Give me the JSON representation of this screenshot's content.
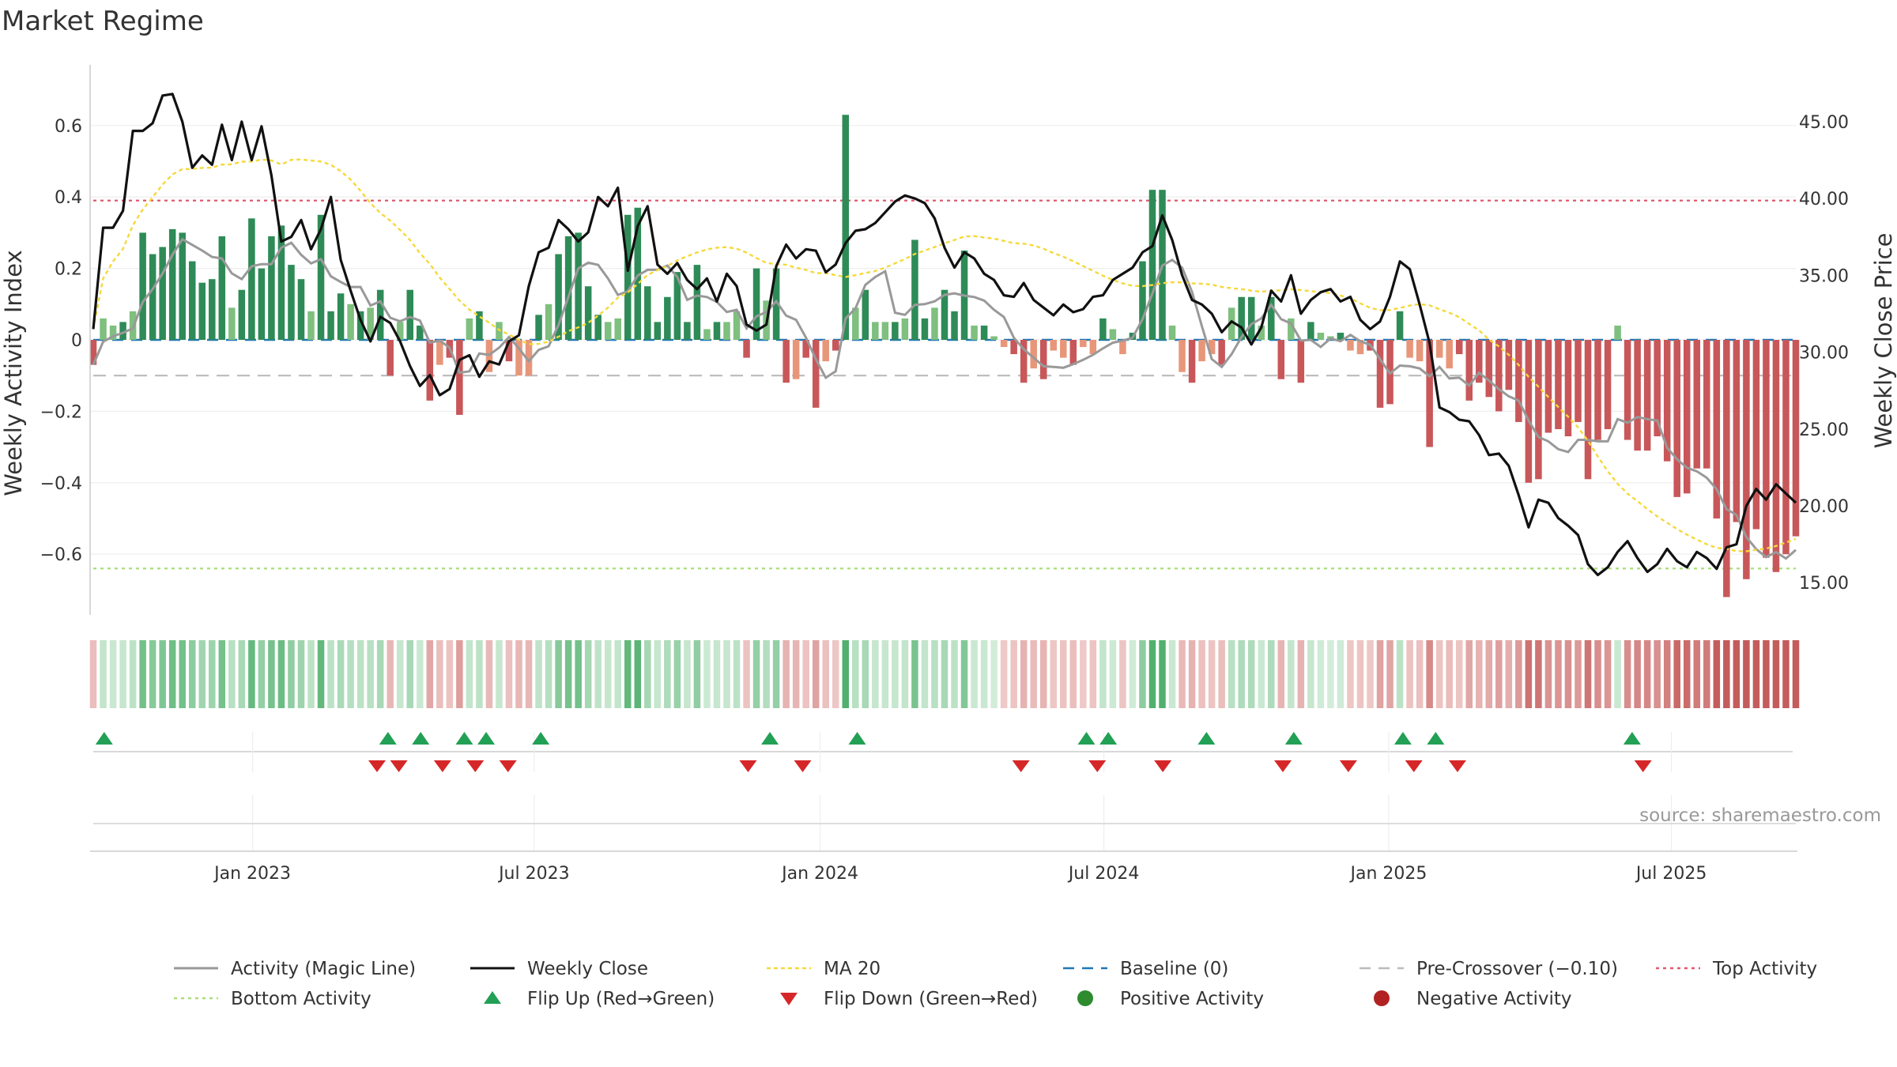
{
  "chart_data": {
    "type": "bar",
    "title": "Market Regime",
    "ylabel_left": "Weekly Activity Index",
    "ylabel_right": "Weekly Close Price",
    "ylim_left": [
      -0.77,
      0.77
    ],
    "ylim_right": [
      12.9,
      48.7
    ],
    "yticks_left": [
      {
        "value": 0.6,
        "label": "0.6"
      },
      {
        "value": 0.4,
        "label": "0.4"
      },
      {
        "value": 0.2,
        "label": "0.2"
      },
      {
        "value": 0.0,
        "label": "0"
      },
      {
        "value": -0.2,
        "label": "−0.2"
      },
      {
        "value": -0.4,
        "label": "−0.4"
      },
      {
        "value": -0.6,
        "label": "−0.6"
      }
    ],
    "yticks_right": [
      {
        "value": 45,
        "label": "45.00"
      },
      {
        "value": 40,
        "label": "40.00"
      },
      {
        "value": 35,
        "label": "35.00"
      },
      {
        "value": 30,
        "label": "30.00"
      },
      {
        "value": 25,
        "label": "25.00"
      },
      {
        "value": 20,
        "label": "20.00"
      },
      {
        "value": 15,
        "label": "15.00"
      }
    ],
    "x_start_week": 0,
    "x_end_week": 156,
    "xticks": [
      {
        "week": 14.6,
        "label": "Jan 2023"
      },
      {
        "week": 40.4,
        "label": "Jul 2023"
      },
      {
        "week": 66.6,
        "label": "Jan 2024"
      },
      {
        "week": 92.6,
        "label": "Jul 2024"
      },
      {
        "week": 118.7,
        "label": "Jan 2025"
      },
      {
        "week": 144.6,
        "label": "Jul 2025"
      }
    ],
    "reference_lines": {
      "top_activity": 0.39,
      "bottom_activity": -0.64,
      "pre_crossover": -0.1,
      "baseline": 0.0
    },
    "activity": [
      -0.07,
      0.06,
      0.04,
      0.05,
      0.08,
      0.3,
      0.24,
      0.26,
      0.31,
      0.3,
      0.22,
      0.16,
      0.17,
      0.29,
      0.09,
      0.14,
      0.34,
      0.2,
      0.29,
      0.32,
      0.21,
      0.17,
      0.08,
      0.35,
      0.08,
      0.13,
      0.1,
      0.08,
      0.09,
      0.14,
      -0.1,
      0.05,
      0.14,
      0.04,
      -0.17,
      -0.07,
      -0.05,
      -0.21,
      0.06,
      0.08,
      -0.09,
      0.05,
      -0.06,
      -0.1,
      -0.1,
      0.07,
      0.1,
      0.24,
      0.29,
      0.3,
      0.15,
      0.07,
      0.05,
      0.06,
      0.35,
      0.37,
      0.15,
      0.05,
      0.12,
      0.19,
      0.05,
      0.21,
      0.03,
      0.05,
      0.05,
      0.08,
      -0.05,
      0.2,
      0.11,
      0.2,
      -0.12,
      -0.11,
      -0.05,
      -0.19,
      -0.06,
      -0.03,
      0.63,
      0.09,
      0.14,
      0.05,
      0.05,
      0.05,
      0.06,
      0.28,
      0.06,
      0.09,
      0.14,
      0.08,
      0.25,
      0.04,
      0.04,
      0.01,
      -0.02,
      -0.04,
      -0.12,
      -0.08,
      -0.11,
      -0.03,
      -0.05,
      -0.07,
      -0.02,
      -0.04,
      0.06,
      0.03,
      -0.04,
      0.02,
      0.22,
      0.42,
      0.42,
      0.04,
      -0.09,
      -0.12,
      -0.06,
      -0.04,
      -0.07,
      0.09,
      0.12,
      0.12,
      0.04,
      0.12,
      -0.11,
      0.06,
      -0.12,
      0.05,
      0.02,
      0.01,
      0.02,
      -0.03,
      -0.04,
      -0.03,
      -0.19,
      -0.18,
      0.08,
      -0.05,
      -0.06,
      -0.3,
      -0.05,
      -0.08,
      -0.04,
      -0.17,
      -0.12,
      -0.16,
      -0.2,
      -0.14,
      -0.23,
      -0.4,
      -0.39,
      -0.26,
      -0.25,
      -0.27,
      -0.23,
      -0.39,
      -0.28,
      -0.25,
      0.04,
      -0.28,
      -0.31,
      -0.31,
      -0.27,
      -0.34,
      -0.44,
      -0.43,
      -0.36,
      -0.36,
      -0.5,
      -0.72,
      -0.51,
      -0.67,
      -0.53,
      -0.61,
      -0.65,
      -0.6,
      -0.55
    ],
    "close": [
      31.5,
      38.1,
      38.1,
      39.2,
      44.4,
      44.4,
      44.9,
      46.7,
      46.8,
      45,
      42,
      42.8,
      42.2,
      44.8,
      42.5,
      45,
      42.5,
      44.7,
      41.5,
      37.2,
      37.5,
      38.6,
      36.7,
      38,
      40.1,
      36,
      34,
      32.1,
      30.7,
      32.3,
      31.9,
      30.7,
      29.1,
      27.8,
      28.5,
      27.2,
      27.6,
      29.5,
      29.8,
      28.4,
      29.4,
      29.2,
      30.7,
      31.1,
      34.3,
      36.5,
      36.8,
      38.6,
      38,
      37.2,
      37.8,
      40.1,
      39.5,
      40.7,
      35.3,
      38.2,
      39.5,
      35.7,
      35.1,
      35.8,
      34.7,
      34.1,
      34.8,
      33.3,
      35.1,
      34.3,
      31.8,
      31.4,
      31.8,
      35.6,
      37,
      36.1,
      36.7,
      36.6,
      35.2,
      35.7,
      37.1,
      37.9,
      38,
      38.4,
      39.1,
      39.8,
      40.2,
      40,
      39.7,
      38.7,
      36.8,
      35.5,
      36.5,
      36.1,
      35.1,
      34.7,
      33.7,
      33.6,
      34.5,
      33.4,
      32.9,
      32.4,
      33.1,
      32.6,
      32.8,
      33.6,
      33.7,
      34.7,
      35.1,
      35.5,
      36.5,
      36.9,
      38.9,
      37.3,
      35,
      33.4,
      33.1,
      32.5,
      31.3,
      32,
      31.6,
      30.5,
      31.6,
      34,
      33.3,
      35,
      32.5,
      33.4,
      33.9,
      34.1,
      33.3,
      33.6,
      32.1,
      31.5,
      32,
      33.6,
      35.9,
      35.4,
      33.1,
      30.6,
      26.4,
      26.1,
      25.6,
      25.5,
      24.6,
      23.3,
      23.4,
      22.6,
      20.7,
      18.6,
      20.4,
      20.2,
      19.2,
      18.7,
      18.1,
      16.2,
      15.5,
      16,
      17,
      17.7,
      16.6,
      15.7,
      16.2,
      17.2,
      16.4,
      16,
      17,
      16.6,
      15.9,
      17.3,
      17.5,
      20,
      21.1,
      20.4,
      21.4,
      20.8,
      20.2
    ],
    "flip_up_weeks": [
      1,
      27,
      30,
      34,
      36,
      41,
      62,
      70,
      91,
      93,
      102,
      110,
      120,
      123,
      141
    ],
    "flip_down_weeks": [
      26,
      28,
      32,
      35,
      38,
      60,
      65,
      85,
      92,
      98,
      109,
      115,
      121,
      125,
      142
    ],
    "series_names": [
      "Activity (Magic Line)",
      "Weekly Close",
      "MA 20"
    ]
  },
  "legend": {
    "row1": [
      "Activity (Magic Line)",
      "Weekly Close",
      "MA 20",
      "Baseline (0)",
      "Pre-Crossover (−0.10)",
      "Top Activity"
    ],
    "row2": [
      "Bottom Activity",
      "Flip Up (Red→Green)",
      "Flip Down (Green→Red)",
      "Positive Activity",
      "Negative Activity"
    ]
  },
  "source": "source: sharemaestro.com",
  "colors": {
    "pos_strong": "#2e8b57",
    "pos_light": "#7fbf7f",
    "neg_strong": "#c8575a",
    "neg_light": "#e8967a",
    "magic": "#999999",
    "close": "#111111",
    "ma": "#f5d93a",
    "baseline": "#1f77b4",
    "pre": "#bbbbbb",
    "top": "#e05a6d",
    "bottom": "#a9de7a",
    "flip_up": "#22a055",
    "flip_down": "#d62728",
    "pos_dot": "#2e8b2e",
    "neg_dot": "#b22222"
  }
}
